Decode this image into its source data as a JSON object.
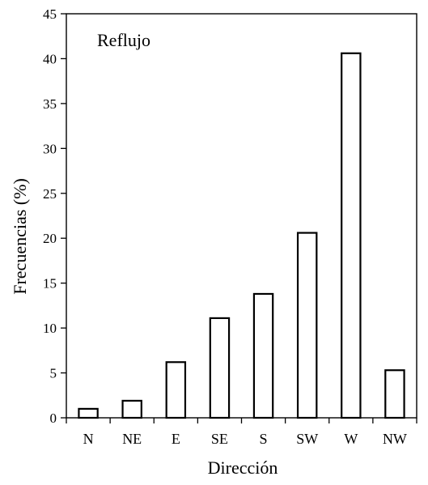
{
  "chart_data": {
    "type": "bar",
    "title": "Reflujo",
    "xlabel": "Dirección",
    "ylabel": "Frecuencias (%)",
    "categories": [
      "N",
      "NE",
      "E",
      "SE",
      "S",
      "SW",
      "W",
      "NW"
    ],
    "values": [
      1.0,
      1.9,
      6.2,
      11.1,
      13.8,
      20.6,
      40.6,
      5.3
    ],
    "ylim": [
      0,
      45
    ],
    "yticks": [
      "0",
      "5",
      "10",
      "15",
      "20",
      "25",
      "30",
      "35",
      "40",
      "45"
    ],
    "grid": false,
    "colors": {
      "bar_fill": "#ffffff",
      "bar_stroke": "#000000",
      "axis": "#000000"
    }
  }
}
